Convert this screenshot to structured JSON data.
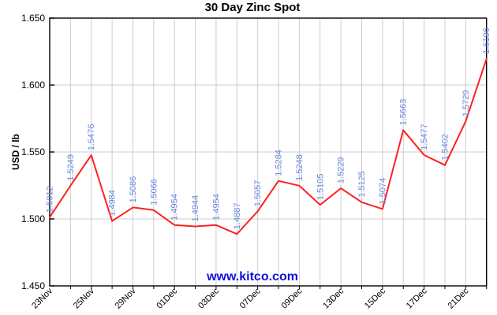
{
  "page": {
    "title": "30 Day Zinc Spot"
  },
  "watermark": "www.kitco.com",
  "chart_data": {
    "type": "line",
    "title": "30 Day Zinc Spot",
    "xlabel": "",
    "ylabel": "USD / lb",
    "x_tick_labels": [
      "23Nov",
      "25Nov",
      "29Nov",
      "01Dec",
      "03Dec",
      "07Dec",
      "09Dec",
      "13Dec",
      "15Dec",
      "17Dec",
      "21Dec"
    ],
    "x_tick_indices": [
      0,
      2,
      4,
      6,
      8,
      10,
      12,
      14,
      16,
      18,
      20
    ],
    "values": [
      1.5012,
      1.5249,
      1.5476,
      1.4984,
      1.5086,
      1.5066,
      1.4954,
      1.4944,
      1.4954,
      1.4887,
      1.5057,
      1.5284,
      1.5248,
      1.5105,
      1.5229,
      1.5125,
      1.5074,
      1.5663,
      1.5477,
      1.5402,
      1.5729,
      1.6196
    ],
    "point_labels": [
      "1.5012",
      "1.5249",
      "1.5476",
      "1.4984",
      "1.5086",
      "1.5066",
      "1.4954",
      "1.4944",
      "1.4954",
      "1.4887",
      "1.5057",
      "1.5284",
      "1.5248",
      "1.5105",
      "1.5229",
      "1.5125",
      "1.5074",
      "1.5663",
      "1.5477",
      "1.5402",
      "1.5729",
      "1.6196"
    ],
    "y_ticks": [
      "1.650",
      "1.600",
      "1.550",
      "1.500",
      "1.450"
    ],
    "ylim": [
      1.45,
      1.65
    ],
    "grid": true,
    "legend": "none",
    "colors": {
      "line": "#ff2020",
      "point_label": "#6688dd",
      "watermark": "#1111dd",
      "grid": "#cccccc",
      "axis": "#000000",
      "background": "#ffffff"
    }
  }
}
